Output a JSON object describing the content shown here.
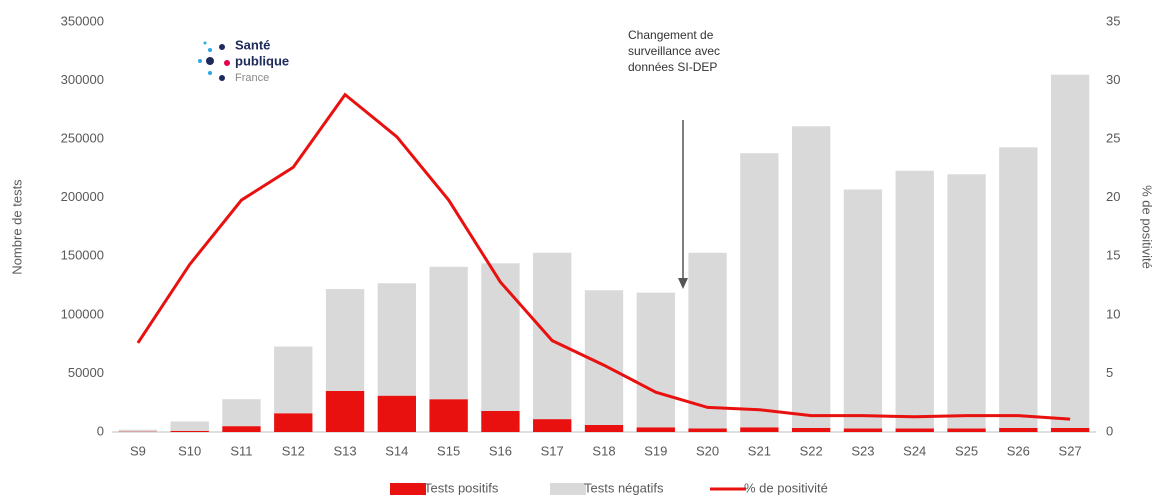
{
  "chart_data": {
    "type": "bar",
    "categories": [
      "S9",
      "S10",
      "S11",
      "S12",
      "S13",
      "S14",
      "S15",
      "S16",
      "S17",
      "S18",
      "S19",
      "S20",
      "S21",
      "S22",
      "S23",
      "S24",
      "S25",
      "S26",
      "S27"
    ],
    "series": [
      {
        "name": "Tests positifs",
        "color": "#e8110f",
        "values": [
          300,
          1000,
          5000,
          16000,
          35000,
          31000,
          28000,
          18000,
          11000,
          6000,
          4000,
          3000,
          4000,
          3500,
          3000,
          3000,
          3000,
          3500,
          3500
        ]
      },
      {
        "name": "Tests négatifs",
        "color": "#d9d9d9",
        "values": [
          1700,
          8000,
          23000,
          57000,
          87000,
          96000,
          113000,
          126000,
          142000,
          115000,
          115000,
          150000,
          234000,
          257500,
          204000,
          220000,
          217000,
          239500,
          301500
        ]
      },
      {
        "name": "% de positivité",
        "color": "#e8110f",
        "type": "line",
        "axis": "y2",
        "values": [
          7.6,
          14.3,
          19.8,
          22.6,
          28.8,
          25.2,
          19.8,
          12.8,
          7.8,
          5.7,
          3.4,
          2.1,
          1.9,
          1.4,
          1.4,
          1.3,
          1.4,
          1.4,
          1.1
        ]
      }
    ],
    "stacked": true,
    "ylabel": "Nombre de tests",
    "y2label": "% de positivité",
    "ylim": [
      0,
      350000
    ],
    "yticks": [
      0,
      50000,
      100000,
      150000,
      200000,
      250000,
      300000,
      350000
    ],
    "y2lim": [
      0,
      35
    ],
    "y2ticks": [
      0,
      5,
      10,
      15,
      20,
      25,
      30,
      35
    ],
    "annotation": [
      "Changement de",
      "surveillance avec",
      "données SI-DEP"
    ],
    "logo": [
      "Santé",
      "publique",
      "France"
    ],
    "legend": "bottom"
  }
}
